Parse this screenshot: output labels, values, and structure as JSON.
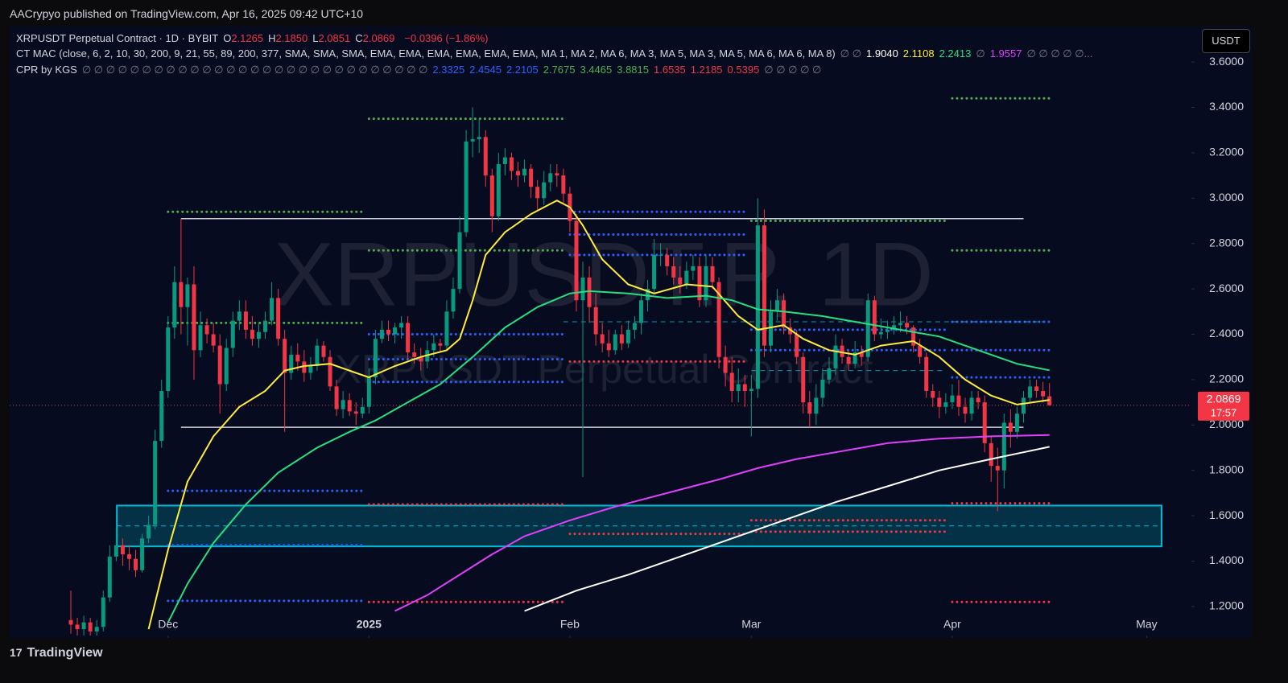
{
  "header": {
    "publisher": "AACrypyo published on TradingView.com, Apr 16, 2025 09:42 UTC+10"
  },
  "legend": {
    "symbol": "XRPUSDT Perpetual Contract · 1D · BYBIT",
    "ohlc": [
      {
        "key": "O",
        "value": "2.1265"
      },
      {
        "key": "H",
        "value": "2.1850"
      },
      {
        "key": "L",
        "value": "2.0851"
      },
      {
        "key": "C",
        "value": "2.0869"
      }
    ],
    "change": "−0.0396 (−1.86%)",
    "indicators": [
      {
        "name": "CT MAC (close, 6, 2, 10, 30, 200, 9, 21, 55, 89, 200, 377, SMA, SMA, SMA, EMA, EMA, EMA, EMA, EMA, EMA, MA 1, MA 2, MA 6, MA 3, MA 5, MA 3, MA 5, MA 6, MA 6, MA 8)",
        "values": [
          {
            "text": "∅ ∅",
            "color": "#787b86"
          },
          {
            "text": "1.9040",
            "color": "#ffffff"
          },
          {
            "text": "2.1108",
            "color": "#ffeb3b"
          },
          {
            "text": "2.2413",
            "color": "#26e07f"
          },
          {
            "text": "∅",
            "color": "#787b86"
          },
          {
            "text": "1.9557",
            "color": "#e040fb"
          },
          {
            "text": "∅ ∅ ∅ ∅ ∅...",
            "color": "#787b86"
          }
        ]
      },
      {
        "name": "CPR by KGS",
        "values": [
          {
            "text": "∅ ∅ ∅ ∅ ∅ ∅ ∅ ∅ ∅ ∅ ∅ ∅ ∅ ∅ ∅ ∅ ∅ ∅ ∅ ∅ ∅ ∅ ∅ ∅ ∅ ∅ ∅ ∅ ∅",
            "color": "#787b86"
          },
          {
            "text": "2.3325",
            "color": "#2962ff"
          },
          {
            "text": "2.4545",
            "color": "#2962ff"
          },
          {
            "text": "2.2105",
            "color": "#2962ff"
          },
          {
            "text": "2.7675",
            "color": "#4caf50"
          },
          {
            "text": "3.4465",
            "color": "#4caf50"
          },
          {
            "text": "3.8815",
            "color": "#4caf50"
          },
          {
            "text": "1.6535",
            "color": "#f23645"
          },
          {
            "text": "1.2185",
            "color": "#f23645"
          },
          {
            "text": "0.5395",
            "color": "#f23645"
          },
          {
            "text": "∅ ∅ ∅ ∅ ∅",
            "color": "#787b86"
          }
        ]
      }
    ]
  },
  "currency_button": "USDT",
  "watermark": {
    "symbol": "XRPUSDT.P, 1D",
    "description": "XRPUSDT Perpetual Contract"
  },
  "footer": {
    "brand": "TradingView"
  },
  "chart_data": {
    "type": "candlestick",
    "xlim": [
      -9.44,
      172.9
    ],
    "ylim": [
      1.072,
      3.753
    ],
    "xticks": [
      {
        "value": 15,
        "label": "Dec"
      },
      {
        "value": 46,
        "label": "2025"
      },
      {
        "value": 77,
        "label": "Feb"
      },
      {
        "value": 105,
        "label": "Mar"
      },
      {
        "value": 136,
        "label": "Apr"
      },
      {
        "value": 166,
        "label": "May"
      }
    ],
    "yticks": [
      {
        "value": 1.2,
        "label": "1.2000"
      },
      {
        "value": 1.4,
        "label": "1.4000"
      },
      {
        "value": 1.6,
        "label": "1.6000"
      },
      {
        "value": 1.8,
        "label": "1.8000"
      },
      {
        "value": 2.0,
        "label": "2.0000"
      },
      {
        "value": 2.2,
        "label": "2.2000"
      },
      {
        "value": 2.4,
        "label": "2.4000"
      },
      {
        "value": 2.6,
        "label": "2.6000"
      },
      {
        "value": 2.8,
        "label": "2.8000"
      },
      {
        "value": 3.0,
        "label": "3.0000"
      },
      {
        "value": 3.2,
        "label": "3.2000"
      },
      {
        "value": 3.4,
        "label": "3.4000"
      },
      {
        "value": 3.6,
        "label": "3.6000"
      }
    ],
    "up_color": "#089981",
    "down_color": "#f23645",
    "open": [
      1.14,
      1.12,
      1.1,
      1.13,
      1.09,
      1.11,
      1.24,
      1.42,
      1.47,
      1.43,
      1.41,
      1.36,
      1.5,
      1.56,
      1.93,
      2.15,
      2.43,
      2.63,
      2.52,
      2.62,
      2.33,
      2.44,
      2.4,
      2.35,
      2.18,
      2.34,
      2.46,
      2.5,
      2.42,
      2.38,
      2.41,
      2.46,
      2.56,
      2.38,
      2.23,
      2.31,
      2.28,
      2.23,
      2.26,
      2.35,
      2.3,
      2.17,
      2.07,
      2.11,
      2.06,
      2.05,
      2.08,
      2.21,
      2.38,
      2.42,
      2.4,
      2.43,
      2.45,
      2.32,
      2.3,
      2.28,
      2.33,
      2.36,
      2.35,
      2.5,
      2.6,
      2.85,
      3.25,
      3.26,
      3.27,
      3.1,
      2.92,
      3.15,
      3.18,
      3.12,
      3.1,
      3.13,
      3.05,
      3.0,
      3.07,
      3.11,
      3.1,
      3.02,
      2.9,
      2.55,
      2.65,
      2.52,
      2.4,
      2.36,
      2.33,
      2.4,
      2.36,
      2.42,
      2.45,
      2.55,
      2.6,
      2.75,
      2.75,
      2.7,
      2.65,
      2.62,
      2.68,
      2.7,
      2.55,
      2.7,
      2.63,
      2.3,
      2.23,
      2.15,
      2.18,
      2.15,
      2.16,
      2.88,
      2.35,
      2.5,
      2.55,
      2.43,
      2.4,
      2.3,
      2.1,
      2.05,
      2.12,
      2.2,
      2.25,
      2.35,
      2.3,
      2.27,
      2.32,
      2.3,
      2.55,
      2.4,
      2.41,
      2.42,
      2.44,
      2.45,
      2.43,
      2.35,
      2.3,
      2.15,
      2.12,
      2.08,
      2.1,
      2.13,
      2.08,
      2.05,
      2.12,
      2.1,
      1.92,
      1.82,
      1.8,
      2.01,
      1.97,
      2.05,
      2.12,
      2.17,
      2.15,
      2.1265
    ],
    "high": [
      1.27,
      1.15,
      1.16,
      1.15,
      1.14,
      1.27,
      1.47,
      1.55,
      1.5,
      1.47,
      1.45,
      1.52,
      1.6,
      1.98,
      2.2,
      2.48,
      2.7,
      2.91,
      2.65,
      2.7,
      2.5,
      2.47,
      2.45,
      2.4,
      2.38,
      2.5,
      2.55,
      2.55,
      2.48,
      2.45,
      2.5,
      2.63,
      2.6,
      2.42,
      2.35,
      2.36,
      2.33,
      2.3,
      2.38,
      2.37,
      2.33,
      2.2,
      2.15,
      2.14,
      2.1,
      2.12,
      2.25,
      2.42,
      2.46,
      2.46,
      2.45,
      2.48,
      2.48,
      2.36,
      2.34,
      2.37,
      2.4,
      2.38,
      2.55,
      2.65,
      2.92,
      3.3,
      3.4,
      3.35,
      3.3,
      3.13,
      3.2,
      3.22,
      3.2,
      3.16,
      3.17,
      3.15,
      3.08,
      3.12,
      3.15,
      3.15,
      3.13,
      3.05,
      2.93,
      2.72,
      2.7,
      2.58,
      2.45,
      2.42,
      2.42,
      2.44,
      2.46,
      2.48,
      2.58,
      2.64,
      2.82,
      2.8,
      2.78,
      2.74,
      2.7,
      2.72,
      2.75,
      2.74,
      2.75,
      2.74,
      2.65,
      2.35,
      2.3,
      2.25,
      2.22,
      2.22,
      3.0,
      2.95,
      2.55,
      2.6,
      2.58,
      2.47,
      2.42,
      2.32,
      2.15,
      2.18,
      2.25,
      2.3,
      2.4,
      2.38,
      2.33,
      2.37,
      2.35,
      2.58,
      2.57,
      2.47,
      2.46,
      2.48,
      2.5,
      2.48,
      2.44,
      2.38,
      2.32,
      2.18,
      2.15,
      2.14,
      2.18,
      2.2,
      2.12,
      2.15,
      2.15,
      2.13,
      1.95,
      1.9,
      2.05,
      2.07,
      2.08,
      2.15,
      2.2,
      2.2,
      2.19,
      2.185
    ],
    "low": [
      1.08,
      1.05,
      1.06,
      1.05,
      1.04,
      1.09,
      1.22,
      1.4,
      1.38,
      1.36,
      1.33,
      1.35,
      1.48,
      1.54,
      1.9,
      2.12,
      2.38,
      2.4,
      2.35,
      2.2,
      2.3,
      2.36,
      2.32,
      2.05,
      2.15,
      2.3,
      2.42,
      2.38,
      2.35,
      2.34,
      2.38,
      2.44,
      2.35,
      1.97,
      2.2,
      2.24,
      2.19,
      2.2,
      2.24,
      2.28,
      2.15,
      2.04,
      2.03,
      2.04,
      2.0,
      2.03,
      2.05,
      2.18,
      2.36,
      2.37,
      2.36,
      2.38,
      2.29,
      2.27,
      2.24,
      2.25,
      2.3,
      2.32,
      2.33,
      2.47,
      2.58,
      2.83,
      3.18,
      3.2,
      3.05,
      2.85,
      2.9,
      3.1,
      3.08,
      3.05,
      3.07,
      3.0,
      2.95,
      2.97,
      3.03,
      3.05,
      2.98,
      2.85,
      2.5,
      1.77,
      2.45,
      2.35,
      2.32,
      2.3,
      2.31,
      2.33,
      2.34,
      2.38,
      2.4,
      2.5,
      2.58,
      2.7,
      2.66,
      2.62,
      2.58,
      2.6,
      2.64,
      2.52,
      2.52,
      2.6,
      2.25,
      2.17,
      2.1,
      2.1,
      2.08,
      1.95,
      2.12,
      2.3,
      2.32,
      2.46,
      2.4,
      2.36,
      2.27,
      2.05,
      1.99,
      2.0,
      2.08,
      2.18,
      2.22,
      2.27,
      2.24,
      2.25,
      2.26,
      2.28,
      2.37,
      2.38,
      2.38,
      2.4,
      2.41,
      2.4,
      2.32,
      2.27,
      2.12,
      2.08,
      2.03,
      2.05,
      2.07,
      2.04,
      2.01,
      2.02,
      2.07,
      1.88,
      1.75,
      1.62,
      1.72,
      1.9,
      1.94,
      2.01,
      2.1,
      2.12,
      2.1,
      2.0851
    ],
    "close": [
      1.12,
      1.1,
      1.13,
      1.09,
      1.11,
      1.24,
      1.42,
      1.47,
      1.43,
      1.41,
      1.36,
      1.5,
      1.56,
      1.93,
      2.15,
      2.43,
      2.63,
      2.52,
      2.62,
      2.33,
      2.44,
      2.4,
      2.35,
      2.18,
      2.34,
      2.46,
      2.5,
      2.42,
      2.38,
      2.41,
      2.46,
      2.56,
      2.38,
      2.23,
      2.31,
      2.28,
      2.23,
      2.26,
      2.35,
      2.3,
      2.17,
      2.07,
      2.11,
      2.06,
      2.05,
      2.08,
      2.21,
      2.38,
      2.42,
      2.4,
      2.43,
      2.45,
      2.32,
      2.3,
      2.28,
      2.33,
      2.36,
      2.35,
      2.5,
      2.6,
      2.85,
      3.25,
      3.26,
      3.27,
      3.1,
      2.92,
      3.15,
      3.18,
      3.12,
      3.1,
      3.13,
      3.05,
      3.0,
      3.07,
      3.11,
      3.1,
      3.02,
      2.9,
      2.55,
      2.65,
      2.52,
      2.4,
      2.36,
      2.33,
      2.4,
      2.36,
      2.42,
      2.45,
      2.55,
      2.6,
      2.75,
      2.75,
      2.7,
      2.65,
      2.62,
      2.68,
      2.7,
      2.55,
      2.7,
      2.63,
      2.3,
      2.23,
      2.15,
      2.18,
      2.15,
      2.16,
      2.88,
      2.35,
      2.5,
      2.55,
      2.43,
      2.4,
      2.3,
      2.1,
      2.05,
      2.12,
      2.2,
      2.25,
      2.35,
      2.3,
      2.27,
      2.32,
      2.3,
      2.55,
      2.4,
      2.41,
      2.42,
      2.44,
      2.45,
      2.43,
      2.35,
      2.3,
      2.15,
      2.12,
      2.08,
      2.1,
      2.13,
      2.08,
      2.05,
      2.12,
      2.1,
      1.92,
      1.82,
      1.8,
      2.01,
      1.97,
      2.05,
      2.12,
      2.17,
      2.15,
      2.1265,
      2.0869
    ],
    "countdown": "17:57",
    "lines": [
      {
        "color": "#ffeb3b",
        "x": [
          12,
          15,
          18,
          22,
          26,
          30,
          33,
          36,
          40,
          44,
          46,
          50,
          54,
          58,
          60,
          62,
          64,
          67,
          71,
          75,
          77,
          79,
          82,
          86,
          90,
          95,
          99,
          103,
          106,
          110,
          113,
          117,
          121,
          125,
          130,
          134,
          138,
          142,
          146,
          151
        ],
        "values": [
          1.1,
          1.45,
          1.75,
          1.95,
          2.08,
          2.15,
          2.24,
          2.26,
          2.27,
          2.23,
          2.21,
          2.26,
          2.3,
          2.33,
          2.38,
          2.55,
          2.75,
          2.85,
          2.93,
          2.99,
          2.96,
          2.88,
          2.73,
          2.62,
          2.58,
          2.62,
          2.61,
          2.48,
          2.42,
          2.44,
          2.38,
          2.33,
          2.31,
          2.35,
          2.37,
          2.3,
          2.2,
          2.13,
          2.09,
          2.1108
        ]
      },
      {
        "color": "#26e07f",
        "x": [
          15,
          18,
          22,
          27,
          32,
          38,
          43,
          47,
          52,
          57,
          62,
          67,
          72,
          77,
          80,
          86,
          92,
          98,
          102,
          106,
          110,
          116,
          122,
          128,
          134,
          140,
          146,
          151
        ],
        "values": [
          1.13,
          1.3,
          1.48,
          1.65,
          1.79,
          1.9,
          1.97,
          2.02,
          2.1,
          2.18,
          2.3,
          2.43,
          2.52,
          2.58,
          2.59,
          2.58,
          2.56,
          2.57,
          2.55,
          2.51,
          2.5,
          2.48,
          2.45,
          2.42,
          2.39,
          2.33,
          2.27,
          2.2413
        ]
      },
      {
        "color": "#e040fb",
        "x": [
          50,
          55,
          60,
          65,
          70,
          77,
          84,
          92,
          100,
          106,
          112,
          118,
          126,
          134,
          142,
          151
        ],
        "values": [
          1.18,
          1.25,
          1.34,
          1.43,
          1.51,
          1.58,
          1.64,
          1.7,
          1.76,
          1.81,
          1.85,
          1.88,
          1.92,
          1.94,
          1.95,
          1.9557
        ]
      },
      {
        "color": "#ffffff",
        "x": [
          70,
          78,
          86,
          94,
          102,
          110,
          118,
          126,
          134,
          142,
          151
        ],
        "values": [
          1.18,
          1.27,
          1.34,
          1.42,
          1.5,
          1.58,
          1.66,
          1.73,
          1.8,
          1.85,
          1.904
        ]
      }
    ],
    "hlines": [
      {
        "color": "#d1d4dc",
        "value": 2.91,
        "x": [
          17,
          147
        ]
      },
      {
        "color": "#d1d4dc",
        "value": 1.99,
        "x": [
          17,
          147
        ]
      }
    ],
    "zone": {
      "color": "#00bcd4",
      "range": [
        1.465,
        1.645
      ],
      "mid": 1.555,
      "x": [
        7.1,
        168.3
      ]
    },
    "dashed": [
      {
        "color": "#00bcd4",
        "value": 2.455,
        "x": [
          76,
          150
        ]
      },
      {
        "color": "#00bcd4",
        "value": 2.24,
        "x": [
          105,
          135
        ]
      }
    ],
    "levels": [
      {
        "color": "#4caf50",
        "value": 2.94,
        "x": [
          15,
          45
        ]
      },
      {
        "color": "#4caf50",
        "value": 2.45,
        "x": [
          15,
          45
        ]
      },
      {
        "color": "#2962ff",
        "value": 1.71,
        "x": [
          15,
          45
        ]
      },
      {
        "color": "#2962ff",
        "value": 1.47,
        "x": [
          15,
          45
        ]
      },
      {
        "color": "#2962ff",
        "value": 1.225,
        "x": [
          15,
          45
        ]
      },
      {
        "color": "#4caf50",
        "value": 3.35,
        "x": [
          46,
          76
        ]
      },
      {
        "color": "#4caf50",
        "value": 2.77,
        "x": [
          46,
          76
        ]
      },
      {
        "color": "#2962ff",
        "value": 2.4,
        "x": [
          46,
          76
        ]
      },
      {
        "color": "#2962ff",
        "value": 2.29,
        "x": [
          46,
          76
        ]
      },
      {
        "color": "#2962ff",
        "value": 2.19,
        "x": [
          46,
          76
        ]
      },
      {
        "color": "#f23645",
        "value": 1.65,
        "x": [
          46,
          76
        ]
      },
      {
        "color": "#f23645",
        "value": 1.22,
        "x": [
          46,
          76
        ]
      },
      {
        "color": "#2962ff",
        "value": 2.94,
        "x": [
          77,
          104
        ]
      },
      {
        "color": "#2962ff",
        "value": 2.84,
        "x": [
          77,
          104
        ]
      },
      {
        "color": "#2962ff",
        "value": 2.75,
        "x": [
          77,
          104
        ]
      },
      {
        "color": "#f23645",
        "value": 2.28,
        "x": [
          77,
          104
        ]
      },
      {
        "color": "#f23645",
        "value": 1.52,
        "x": [
          77,
          104
        ]
      },
      {
        "color": "#4caf50",
        "value": 2.9,
        "x": [
          105,
          135
        ]
      },
      {
        "color": "#2962ff",
        "value": 2.42,
        "x": [
          105,
          135
        ]
      },
      {
        "color": "#2962ff",
        "value": 2.33,
        "x": [
          105,
          135
        ]
      },
      {
        "color": "#f23645",
        "value": 1.58,
        "x": [
          105,
          135
        ]
      },
      {
        "color": "#f23645",
        "value": 1.53,
        "x": [
          105,
          135
        ]
      },
      {
        "color": "#4caf50",
        "value": 3.44,
        "x": [
          136,
          151
        ]
      },
      {
        "color": "#4caf50",
        "value": 2.77,
        "x": [
          136,
          151
        ]
      },
      {
        "color": "#2962ff",
        "value": 2.455,
        "x": [
          136,
          151
        ]
      },
      {
        "color": "#2962ff",
        "value": 2.33,
        "x": [
          136,
          151
        ]
      },
      {
        "color": "#2962ff",
        "value": 2.21,
        "x": [
          136,
          151
        ]
      },
      {
        "color": "#f23645",
        "value": 1.655,
        "x": [
          136,
          151
        ]
      },
      {
        "color": "#f23645",
        "value": 1.22,
        "x": [
          136,
          151
        ]
      }
    ]
  }
}
